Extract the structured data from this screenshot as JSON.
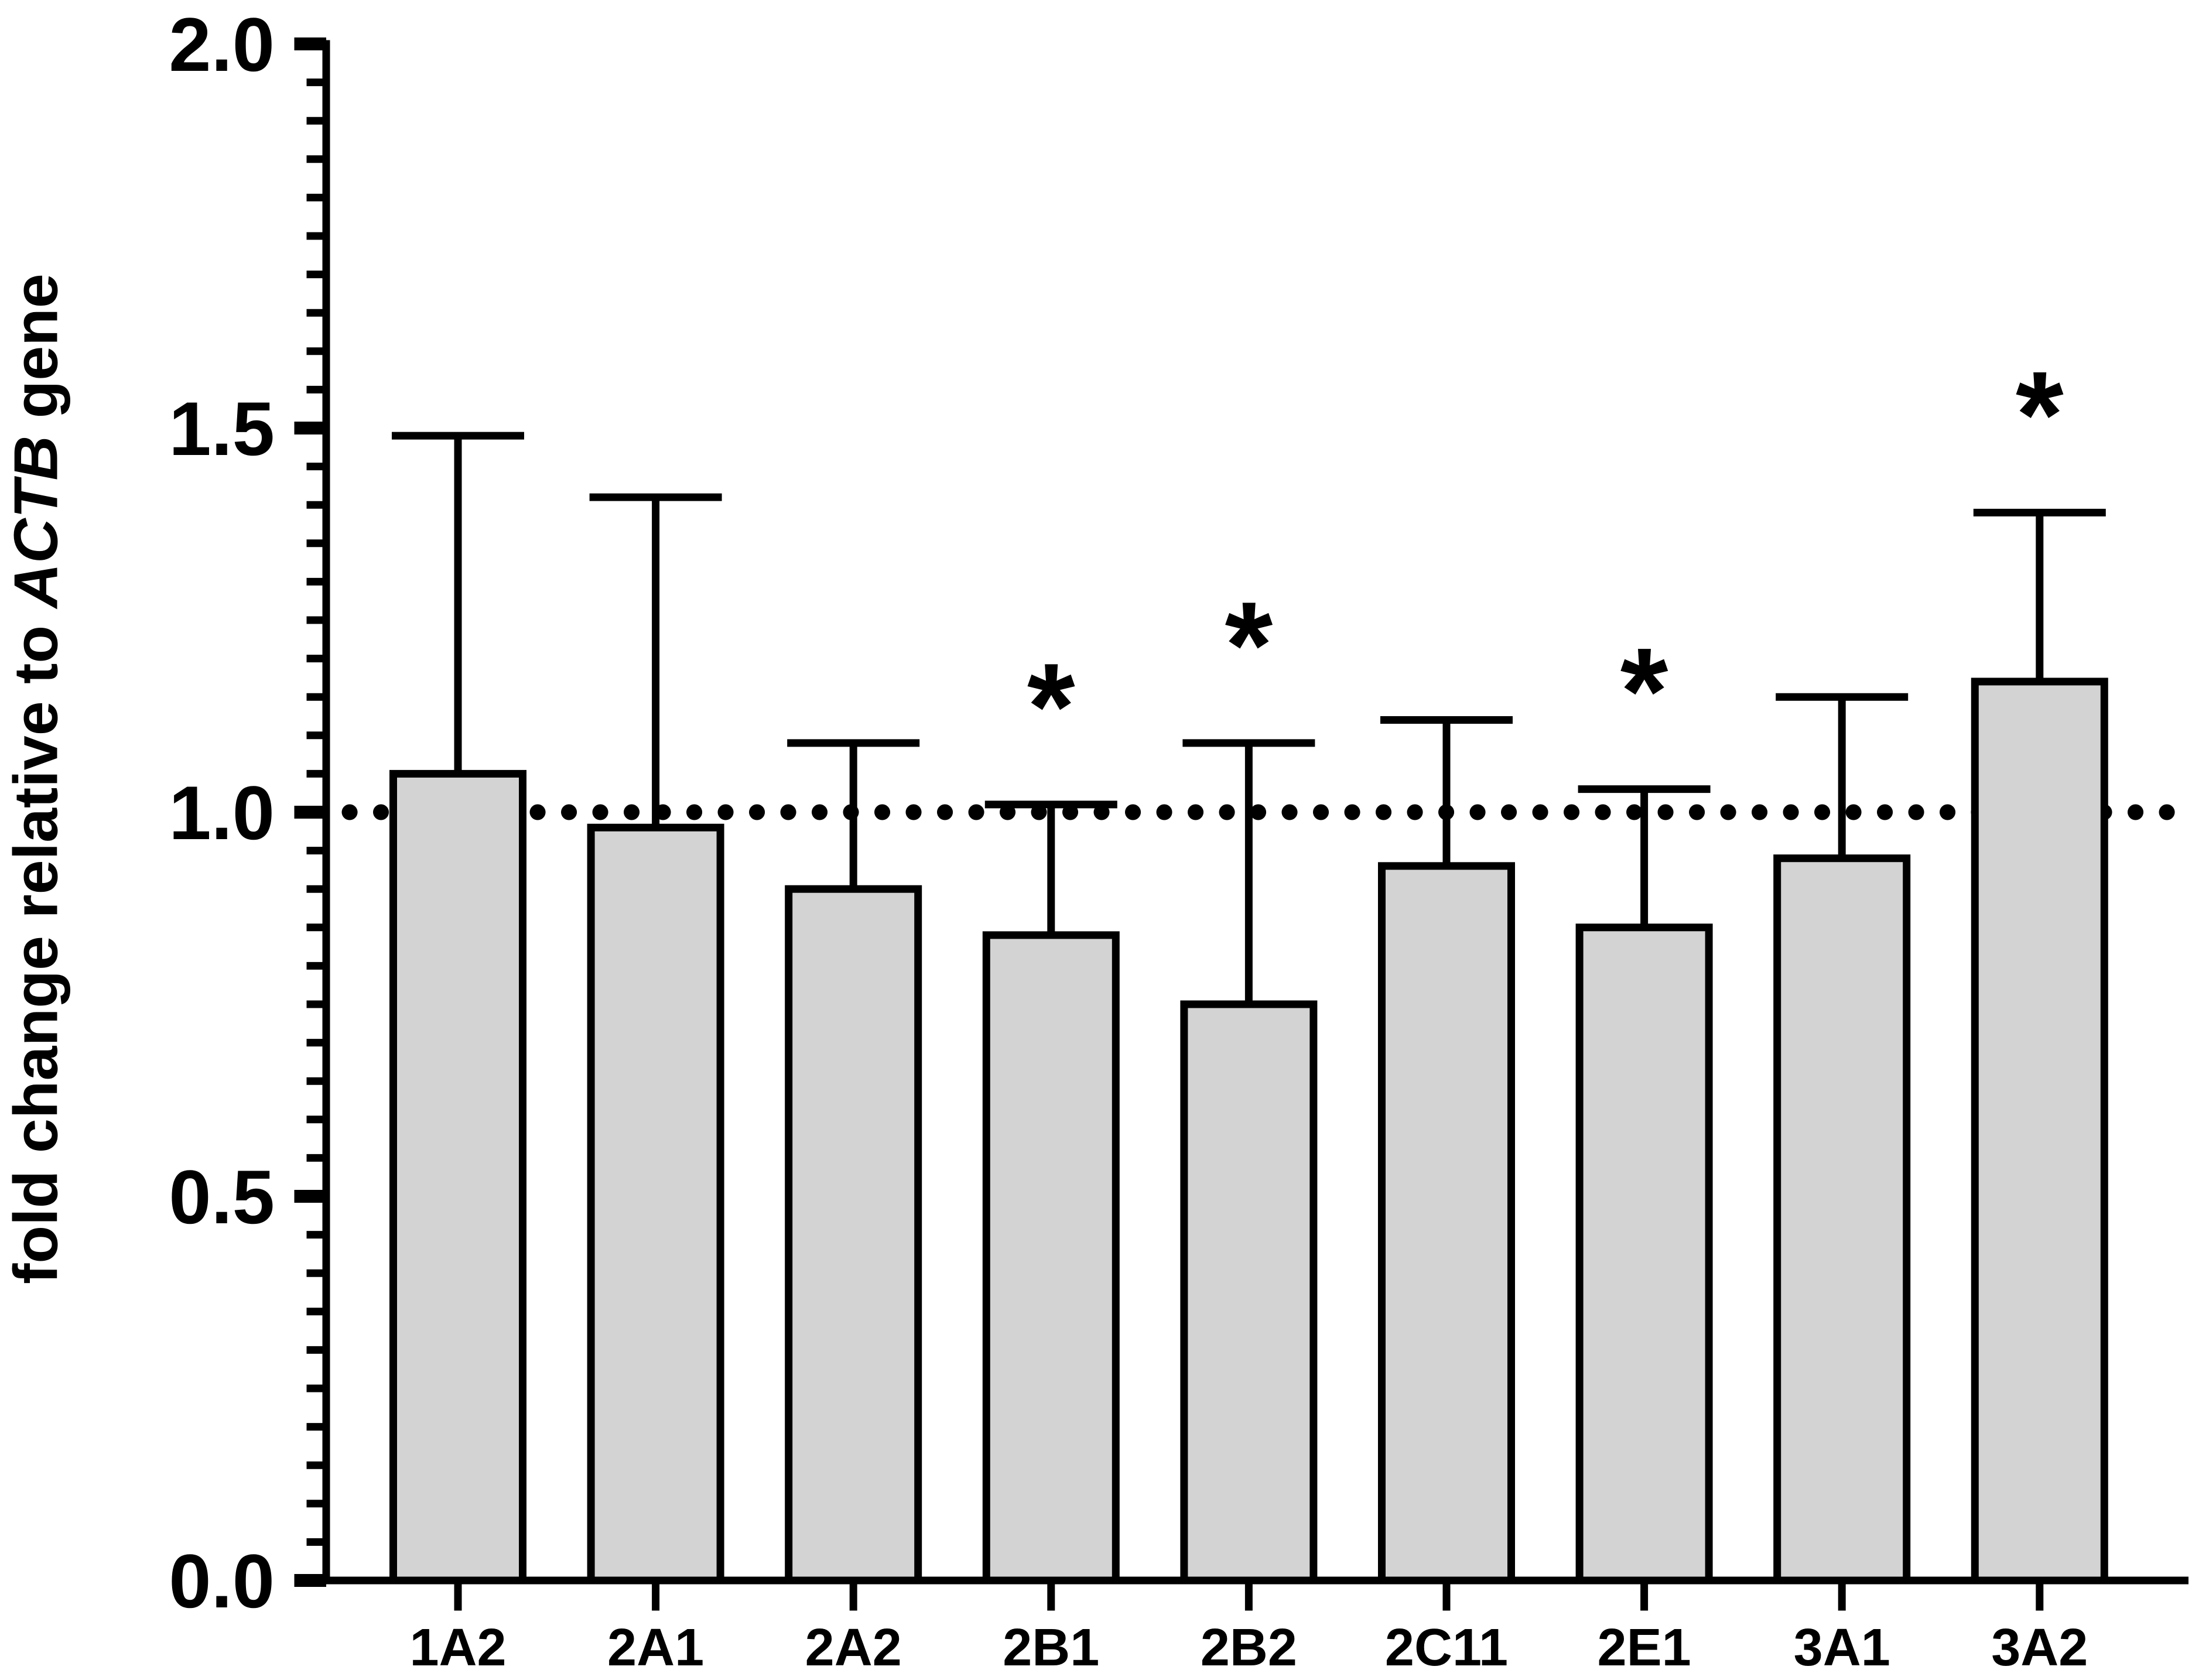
{
  "chart_data": {
    "type": "bar",
    "title": "",
    "ylabel_parts": {
      "prefix": "fold change relative to ",
      "gene": "ACTB",
      "suffix": " gene"
    },
    "categories": [
      "1A2",
      "2A1",
      "2A2",
      "2B1",
      "2B2",
      "2C11",
      "2E1",
      "3A1",
      "3A2"
    ],
    "values": [
      1.05,
      0.98,
      0.9,
      0.84,
      0.75,
      0.93,
      0.85,
      0.94,
      1.17
    ],
    "error_tops": [
      1.49,
      1.41,
      1.09,
      1.01,
      1.09,
      1.12,
      1.03,
      1.15,
      1.39
    ],
    "significant": [
      false,
      false,
      false,
      true,
      true,
      false,
      true,
      false,
      true
    ],
    "significance_marker": "*",
    "reference_line": 1.0,
    "ylim": [
      0.0,
      2.0
    ],
    "yticks": [
      0.0,
      0.5,
      1.0,
      1.5,
      2.0
    ],
    "ytick_labels": [
      "0.0",
      "0.5",
      "1.0",
      "1.5",
      "2.0"
    ],
    "minor_tick_step": 0.05,
    "grid": false,
    "legend": null,
    "colors": {
      "bar_fill": "#d3d3d3",
      "stroke": "#000000",
      "background": "#ffffff"
    }
  }
}
